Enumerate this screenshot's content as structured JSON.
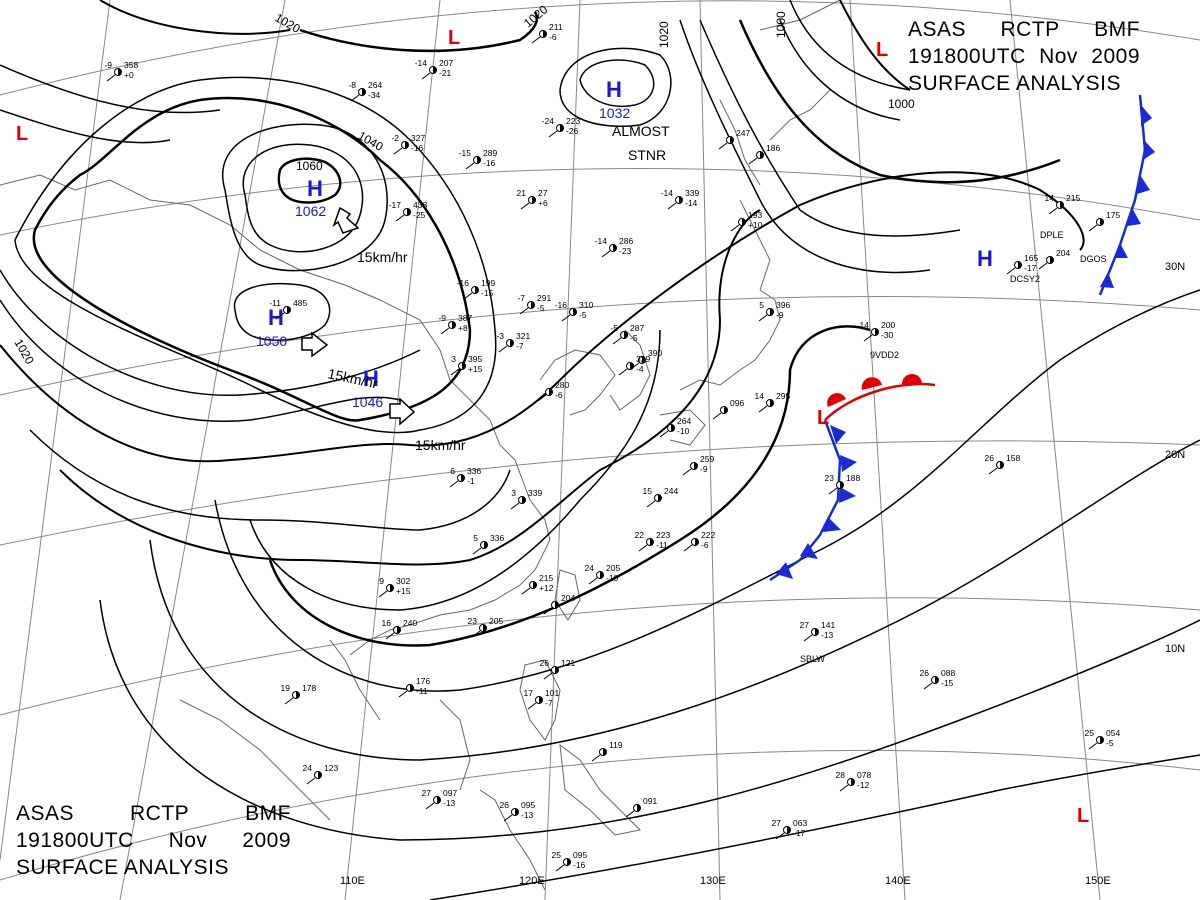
{
  "header": {
    "agency": "ASAS",
    "center": "RCTP",
    "office": "BMF",
    "datetime": "191800UTC",
    "month": "Nov",
    "year": "2009",
    "product": "SURFACE ANALYSIS"
  },
  "colors": {
    "high": "#1a1ad6",
    "low": "#e00000",
    "cold_front": "#1a2ad6",
    "warm_front": "#e00000",
    "isobar": "#000000",
    "grid": "#777777"
  },
  "longitude_labels": [
    "110E",
    "120E",
    "130E",
    "140E",
    "150E"
  ],
  "latitude_labels": [
    "30N",
    "20N",
    "10N"
  ],
  "pressure_centers": [
    {
      "type": "H",
      "value": "1062"
    },
    {
      "type": "H",
      "value": "1050"
    },
    {
      "type": "H",
      "value": "1046"
    },
    {
      "type": "H",
      "value": "1032"
    },
    {
      "type": "H",
      "value": ""
    },
    {
      "type": "L",
      "value": ""
    },
    {
      "type": "L",
      "value": ""
    },
    {
      "type": "L",
      "value": ""
    },
    {
      "type": "L",
      "value": ""
    },
    {
      "type": "L",
      "value": ""
    }
  ],
  "isobar_labels": [
    "1020",
    "1020",
    "1020",
    "1040",
    "1060",
    "1000",
    "1000",
    "1020"
  ],
  "motion_labels": [
    "15km/hr",
    "15km/hr",
    "15km/hr"
  ],
  "annotation": {
    "line1": "ALMOST",
    "line2": "STNR"
  },
  "ship_ids": [
    "DPLE",
    "DGOS",
    "DCSY2",
    "9VDD2",
    "SBLW"
  ],
  "station_plots": [
    {
      "t": "-9",
      "p": "358",
      "d": "+0"
    },
    {
      "t": "-14",
      "p": "207",
      "d": "-21"
    },
    {
      "t": "-8",
      "p": "264",
      "d": "-34"
    },
    {
      "t": "",
      "p": "211",
      "d": "-6"
    },
    {
      "t": "-24",
      "p": "223",
      "d": "-26"
    },
    {
      "t": "-15",
      "p": "289",
      "d": "-16"
    },
    {
      "t": "-2",
      "p": "327",
      "d": "-16"
    },
    {
      "t": "-17",
      "p": "438",
      "d": "-25"
    },
    {
      "t": "21",
      "p": "27",
      "d": "+6"
    },
    {
      "t": "-14",
      "p": "339",
      "d": "-14"
    },
    {
      "t": "-14",
      "p": "286",
      "d": "-23"
    },
    {
      "t": "-16",
      "p": "199",
      "d": "-15"
    },
    {
      "t": "-16",
      "p": "310",
      "d": "-5"
    },
    {
      "t": "-7",
      "p": "291",
      "d": "-5"
    },
    {
      "t": "-11",
      "p": "485",
      "d": ""
    },
    {
      "t": "-9",
      "p": "387",
      "d": "+8"
    },
    {
      "t": "-3",
      "p": "321",
      "d": "-7"
    },
    {
      "t": "-5",
      "p": "287",
      "d": "-5"
    },
    {
      "t": "",
      "p": "390",
      "d": ""
    },
    {
      "t": "3",
      "p": "395",
      "d": "+15"
    },
    {
      "t": "",
      "p": "329",
      "d": "-4"
    },
    {
      "t": "",
      "p": "280",
      "d": "-6"
    },
    {
      "t": "6",
      "p": "336",
      "d": "-1"
    },
    {
      "t": "3",
      "p": "339",
      "d": ""
    },
    {
      "t": "5",
      "p": "336",
      "d": ""
    },
    {
      "t": "9",
      "p": "302",
      "d": "+15"
    },
    {
      "t": "16",
      "p": "240",
      "d": ""
    },
    {
      "t": "15",
      "p": "244",
      "d": ""
    },
    {
      "t": "",
      "p": "259",
      "d": "-9"
    },
    {
      "t": "",
      "p": "264",
      "d": "-10"
    },
    {
      "t": "22",
      "p": "223",
      "d": "-11"
    },
    {
      "t": "",
      "p": "222",
      "d": "-6"
    },
    {
      "t": "24",
      "p": "205",
      "d": "-10"
    },
    {
      "t": "",
      "p": "215",
      "d": "+12"
    },
    {
      "t": "",
      "p": "204",
      "d": ""
    },
    {
      "t": "23",
      "p": "205",
      "d": ""
    },
    {
      "t": "19",
      "p": "178",
      "d": ""
    },
    {
      "t": "",
      "p": "176",
      "d": "-11"
    },
    {
      "t": "26",
      "p": "121",
      "d": ""
    },
    {
      "t": "17",
      "p": "101",
      "d": "-7"
    },
    {
      "t": "",
      "p": "119",
      "d": ""
    },
    {
      "t": "24",
      "p": "123",
      "d": ""
    },
    {
      "t": "27",
      "p": "097",
      "d": "-13"
    },
    {
      "t": "26",
      "p": "095",
      "d": "-13"
    },
    {
      "t": "25",
      "p": "095",
      "d": "-16"
    },
    {
      "t": "",
      "p": "091",
      "d": ""
    },
    {
      "t": "27",
      "p": "141",
      "d": "-13"
    },
    {
      "t": "26",
      "p": "088",
      "d": "-15"
    },
    {
      "t": "26",
      "p": "158",
      "d": ""
    },
    {
      "t": "28",
      "p": "078",
      "d": "-12"
    },
    {
      "t": "27",
      "p": "063",
      "d": "-17"
    },
    {
      "t": "25",
      "p": "054",
      "d": "-5"
    },
    {
      "t": "23",
      "p": "188",
      "d": ""
    },
    {
      "t": "14",
      "p": "200",
      "d": "-30"
    },
    {
      "t": "14",
      "p": "215",
      "d": ""
    },
    {
      "t": "",
      "p": "175",
      "d": ""
    },
    {
      "t": "",
      "p": "165",
      "d": "-17"
    },
    {
      "t": "",
      "p": "204",
      "d": ""
    },
    {
      "t": "",
      "p": "193",
      "d": "+10"
    },
    {
      "t": "",
      "p": "247",
      "d": ""
    },
    {
      "t": "",
      "p": "186",
      "d": ""
    },
    {
      "t": "",
      "p": "096",
      "d": ""
    },
    {
      "t": "14",
      "p": "295",
      "d": ""
    },
    {
      "t": "5",
      "p": "396",
      "d": "-9"
    }
  ]
}
